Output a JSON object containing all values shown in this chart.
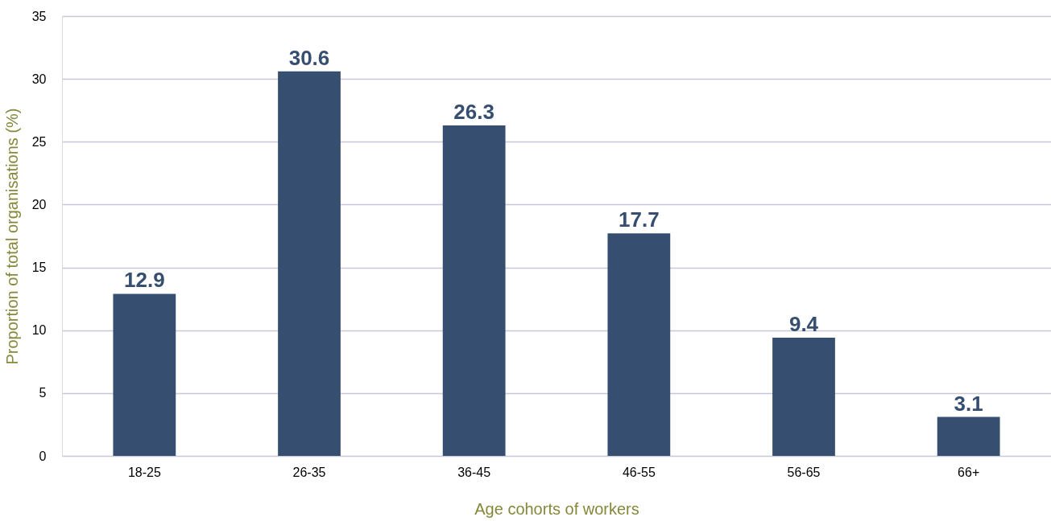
{
  "chart_data": {
    "type": "bar",
    "xlabel": "Age cohorts of workers",
    "ylabel": "Proportion of total organisations (%)",
    "categories": [
      "18-25",
      "26-35",
      "36-45",
      "46-55",
      "56-65",
      "66+"
    ],
    "values": [
      12.9,
      30.6,
      26.3,
      17.7,
      9.4,
      3.1
    ],
    "color": "#364f71",
    "ylim": [
      0,
      35
    ],
    "yticks": [
      0,
      5,
      10,
      15,
      20,
      25,
      30,
      35
    ],
    "grid": "y",
    "data_labels": true
  }
}
